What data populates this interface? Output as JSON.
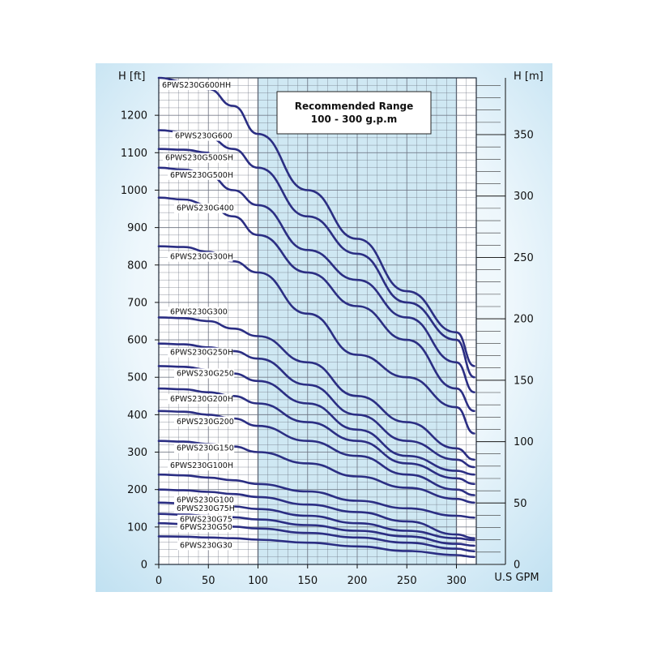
{
  "chart_data": {
    "type": "line",
    "title": "",
    "xlabel": "U.S GPM",
    "ylabel_left": "H [ft]",
    "ylabel_right": "H [m]",
    "xlim": [
      0,
      320
    ],
    "ylim": [
      0,
      1300
    ],
    "x_ticks": [
      0,
      50,
      100,
      150,
      200,
      250,
      300
    ],
    "y_ticks_ft": [
      0,
      100,
      200,
      300,
      400,
      500,
      600,
      700,
      800,
      900,
      1000,
      1100,
      1200
    ],
    "y_ticks_m": [
      0,
      50,
      100,
      150,
      200,
      250,
      300,
      350
    ],
    "grid": true,
    "recommended_range": {
      "x_from": 100,
      "x_to": 300,
      "label_line1": "Recommended Range",
      "label_line2": "100 - 300 g.p.m"
    },
    "series": [
      {
        "name": "6PWS230G600HH",
        "x": [
          0,
          25,
          50,
          75,
          100,
          150,
          200,
          250,
          300,
          318
        ],
        "values": [
          1300,
          1290,
          1270,
          1225,
          1150,
          1000,
          870,
          730,
          620,
          530
        ]
      },
      {
        "name": "6PWS230G600",
        "x": [
          0,
          25,
          50,
          75,
          100,
          150,
          200,
          250,
          300,
          318
        ],
        "values": [
          1160,
          1155,
          1140,
          1110,
          1060,
          930,
          830,
          700,
          600,
          500
        ]
      },
      {
        "name": "6PWS230G500SH",
        "x": [
          0,
          25,
          50
        ],
        "values": [
          1110,
          1108,
          1100
        ]
      },
      {
        "name": "6PWS230G500H",
        "x": [
          0,
          25,
          50,
          75,
          100,
          150,
          200,
          250,
          300,
          318
        ],
        "values": [
          1060,
          1055,
          1040,
          1000,
          960,
          840,
          760,
          660,
          540,
          460
        ]
      },
      {
        "name": "6PWS230G400",
        "x": [
          0,
          25,
          50,
          75,
          100,
          150,
          200,
          250,
          300,
          318
        ],
        "values": [
          980,
          975,
          960,
          930,
          880,
          780,
          690,
          600,
          470,
          410
        ]
      },
      {
        "name": "6PWS230G300H",
        "x": [
          0,
          25,
          50,
          75,
          100,
          150,
          200,
          250,
          300,
          318
        ],
        "values": [
          850,
          848,
          835,
          810,
          780,
          670,
          560,
          500,
          420,
          350
        ]
      },
      {
        "name": "6PWS230G300",
        "x": [
          0,
          25,
          50,
          75,
          100,
          150,
          200,
          250,
          300,
          318
        ],
        "values": [
          660,
          658,
          650,
          630,
          610,
          540,
          450,
          380,
          310,
          280
        ]
      },
      {
        "name": "6PWS230G250H",
        "x": [
          0,
          25,
          50,
          75,
          100,
          150,
          200,
          250,
          300,
          318
        ],
        "values": [
          590,
          588,
          580,
          570,
          550,
          480,
          400,
          330,
          280,
          260
        ]
      },
      {
        "name": "6PWS230G250",
        "x": [
          0,
          25,
          50,
          75,
          100,
          150,
          200,
          250,
          300,
          318
        ],
        "values": [
          530,
          528,
          520,
          510,
          490,
          430,
          360,
          290,
          250,
          240
        ]
      },
      {
        "name": "6PWS230G200H",
        "x": [
          0,
          25,
          50,
          75,
          100,
          150,
          200,
          250,
          300,
          318
        ],
        "values": [
          470,
          468,
          460,
          450,
          430,
          380,
          330,
          270,
          230,
          215
        ]
      },
      {
        "name": "6PWS230G200",
        "x": [
          0,
          25,
          50,
          75,
          100,
          150,
          200,
          250,
          300,
          318
        ],
        "values": [
          410,
          408,
          400,
          390,
          370,
          330,
          290,
          240,
          200,
          185
        ]
      },
      {
        "name": "6PWS230G150",
        "x": [
          0,
          25,
          50,
          75,
          100,
          150,
          200,
          250,
          300,
          318
        ],
        "values": [
          330,
          328,
          322,
          315,
          300,
          270,
          235,
          205,
          175,
          165
        ]
      },
      {
        "name": "6PWS230G100H",
        "x": [
          0,
          25,
          50,
          75,
          100,
          150,
          200,
          250,
          300,
          318
        ],
        "values": [
          240,
          238,
          232,
          225,
          215,
          195,
          170,
          150,
          130,
          125
        ]
      },
      {
        "name": "6PWS230G100",
        "x": [
          0,
          25,
          50,
          75,
          100,
          150,
          200,
          250,
          300,
          318
        ],
        "values": [
          200,
          198,
          194,
          188,
          180,
          160,
          140,
          115,
          80,
          70
        ]
      },
      {
        "name": "6PWS230G75H",
        "x": [
          0,
          25,
          50,
          75,
          100,
          150,
          200,
          250,
          300,
          318
        ],
        "values": [
          165,
          163,
          160,
          155,
          148,
          130,
          110,
          90,
          70,
          65
        ]
      },
      {
        "name": "6PWS230G75",
        "x": [
          0,
          25,
          50,
          75,
          100,
          150,
          200,
          250,
          300,
          318
        ],
        "values": [
          135,
          133,
          130,
          126,
          120,
          105,
          90,
          75,
          55,
          50
        ]
      },
      {
        "name": "6PWS230G50",
        "x": [
          0,
          25,
          50,
          75,
          100,
          150,
          200,
          250,
          300,
          318
        ],
        "values": [
          110,
          108,
          105,
          101,
          96,
          84,
          72,
          58,
          42,
          35
        ]
      },
      {
        "name": "6PWS230G30",
        "x": [
          0,
          25,
          50,
          75,
          100,
          150,
          200,
          250,
          300,
          318
        ],
        "values": [
          75,
          74,
          72,
          70,
          66,
          58,
          48,
          36,
          25,
          20
        ]
      }
    ],
    "colors": {
      "curve": "#2b2e83",
      "range_fill": "#cfe8f3",
      "grid": "#6b7280",
      "sky_light": "#eef7fc",
      "sky_mid": "#bfe0f1"
    }
  }
}
